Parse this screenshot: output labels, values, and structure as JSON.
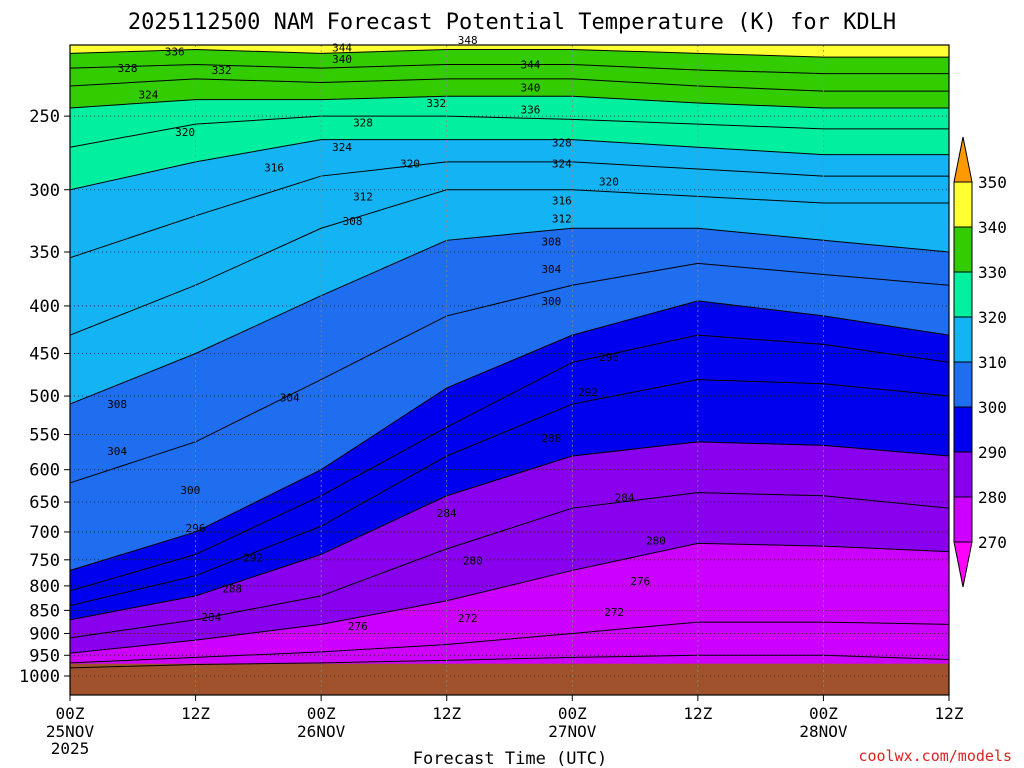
{
  "chart_data": {
    "type": "heatmap",
    "title": "2025112500 NAM Forecast Potential Temperature (K) for KDLH",
    "xlabel": "Forecast Time (UTC)",
    "ylabel": "",
    "credit": "coolwx.com/models",
    "x_ticks": [
      "00Z",
      "12Z",
      "00Z",
      "12Z",
      "00Z",
      "12Z",
      "00Z",
      "12Z"
    ],
    "x_dates": [
      {
        "tick": 0,
        "lines": [
          "25NOV",
          "2025"
        ]
      },
      {
        "tick": 2,
        "lines": [
          "26NOV"
        ]
      },
      {
        "tick": 4,
        "lines": [
          "27NOV"
        ]
      },
      {
        "tick": 6,
        "lines": [
          "28NOV"
        ]
      }
    ],
    "x_range_hours": [
      0,
      84
    ],
    "y_pressure_ticks": [
      250,
      300,
      350,
      400,
      450,
      500,
      550,
      600,
      650,
      700,
      750,
      800,
      850,
      900,
      950,
      1000
    ],
    "y_pressure_range_hPa": [
      200,
      1000
    ],
    "y_scale": "log",
    "ground_pressure_hPa": 970,
    "colorbar": {
      "levels": [
        270,
        280,
        290,
        300,
        310,
        320,
        330,
        340,
        350
      ],
      "colors": [
        "#ff00ff",
        "#cc00ff",
        "#8800ee",
        "#0000ee",
        "#1f6ef0",
        "#14b4f4",
        "#00f0a0",
        "#33cc00",
        "#ffff33",
        "#ff9900"
      ],
      "extend": "both",
      "units": "K"
    },
    "ground_color": "#a0522d",
    "grid": "dotted",
    "isentropes": [
      {
        "theta": 272,
        "p": [
          980,
          972,
          968,
          962,
          955,
          950,
          950,
          960
        ]
      },
      {
        "theta": 276,
        "p": [
          968,
          955,
          942,
          925,
          900,
          875,
          875,
          880
        ]
      },
      {
        "theta": 280,
        "p": [
          945,
          915,
          880,
          830,
          770,
          720,
          725,
          735
        ]
      },
      {
        "theta": 284,
        "p": [
          910,
          870,
          820,
          730,
          660,
          635,
          640,
          660
        ]
      },
      {
        "theta": 288,
        "p": [
          870,
          820,
          740,
          640,
          580,
          560,
          565,
          580
        ]
      },
      {
        "theta": 292,
        "p": [
          840,
          780,
          690,
          580,
          510,
          480,
          485,
          500
        ]
      },
      {
        "theta": 296,
        "p": [
          810,
          740,
          640,
          540,
          460,
          430,
          440,
          460
        ]
      },
      {
        "theta": 300,
        "p": [
          770,
          700,
          600,
          490,
          430,
          395,
          410,
          430
        ]
      },
      {
        "theta": 304,
        "p": [
          620,
          560,
          480,
          410,
          380,
          360,
          370,
          380
        ]
      },
      {
        "theta": 308,
        "p": [
          510,
          450,
          390,
          340,
          330,
          330,
          340,
          350
        ]
      },
      {
        "theta": 312,
        "p": [
          430,
          380,
          330,
          300,
          300,
          305,
          310,
          310
        ]
      },
      {
        "theta": 316,
        "p": [
          355,
          320,
          290,
          280,
          280,
          285,
          290,
          290
        ]
      },
      {
        "theta": 320,
        "p": [
          300,
          280,
          265,
          265,
          265,
          270,
          275,
          275
        ]
      },
      {
        "theta": 324,
        "p": [
          270,
          255,
          250,
          250,
          252,
          255,
          258,
          258
        ]
      },
      {
        "theta": 328,
        "p": [
          245,
          240,
          240,
          238,
          238,
          242,
          245,
          245
        ]
      },
      {
        "theta": 332,
        "p": [
          232,
          228,
          230,
          228,
          228,
          232,
          235,
          235
        ]
      },
      {
        "theta": 336,
        "p": [
          222,
          220,
          222,
          220,
          220,
          223,
          225,
          225
        ]
      },
      {
        "theta": 340,
        "p": [
          214,
          212,
          214,
          212,
          212,
          214,
          216,
          216
        ]
      },
      {
        "theta": 344,
        "p": [
          207,
          206,
          207,
          206,
          206,
          207,
          208,
          208
        ]
      },
      {
        "theta": 348,
        "p": [
          201,
          201,
          201,
          201,
          201,
          202,
          202,
          202
        ]
      }
    ],
    "contour_labels": [
      {
        "text": "336",
        "hour": 10,
        "p": 213
      },
      {
        "text": "328",
        "hour": 5.5,
        "p": 222
      },
      {
        "text": "332",
        "hour": 14.5,
        "p": 223
      },
      {
        "text": "344",
        "hour": 26,
        "p": 211
      },
      {
        "text": "340",
        "hour": 26,
        "p": 217
      },
      {
        "text": "348",
        "hour": 38,
        "p": 207
      },
      {
        "text": "344",
        "hour": 44,
        "p": 220
      },
      {
        "text": "340",
        "hour": 44,
        "p": 233
      },
      {
        "text": "336",
        "hour": 44,
        "p": 246
      },
      {
        "text": "332",
        "hour": 35,
        "p": 242
      },
      {
        "text": "324",
        "hour": 7.5,
        "p": 237
      },
      {
        "text": "320",
        "hour": 11,
        "p": 260
      },
      {
        "text": "328",
        "hour": 28,
        "p": 254
      },
      {
        "text": "324",
        "hour": 26,
        "p": 270
      },
      {
        "text": "320",
        "hour": 32.5,
        "p": 281
      },
      {
        "text": "316",
        "hour": 19.5,
        "p": 284
      },
      {
        "text": "328",
        "hour": 47,
        "p": 267
      },
      {
        "text": "324",
        "hour": 47,
        "p": 281
      },
      {
        "text": "320",
        "hour": 51.5,
        "p": 294
      },
      {
        "text": "312",
        "hour": 28,
        "p": 305
      },
      {
        "text": "316",
        "hour": 47,
        "p": 308
      },
      {
        "text": "312",
        "hour": 47,
        "p": 322
      },
      {
        "text": "308",
        "hour": 27,
        "p": 324
      },
      {
        "text": "308",
        "hour": 46,
        "p": 341
      },
      {
        "text": "304",
        "hour": 46,
        "p": 365
      },
      {
        "text": "300",
        "hour": 46,
        "p": 395
      },
      {
        "text": "296",
        "hour": 51.5,
        "p": 454
      },
      {
        "text": "304",
        "hour": 21,
        "p": 502
      },
      {
        "text": "308",
        "hour": 4.5,
        "p": 510
      },
      {
        "text": "292",
        "hour": 49.5,
        "p": 495
      },
      {
        "text": "304",
        "hour": 4.5,
        "p": 573
      },
      {
        "text": "288",
        "hour": 46,
        "p": 555
      },
      {
        "text": "300",
        "hour": 11.5,
        "p": 631
      },
      {
        "text": "284",
        "hour": 53,
        "p": 643
      },
      {
        "text": "284",
        "hour": 36,
        "p": 668
      },
      {
        "text": "296",
        "hour": 12,
        "p": 693
      },
      {
        "text": "280",
        "hour": 56,
        "p": 715
      },
      {
        "text": "292",
        "hour": 17.5,
        "p": 746
      },
      {
        "text": "280",
        "hour": 38.5,
        "p": 751
      },
      {
        "text": "276",
        "hour": 54.5,
        "p": 790
      },
      {
        "text": "288",
        "hour": 15.5,
        "p": 805
      },
      {
        "text": "272",
        "hour": 52,
        "p": 853
      },
      {
        "text": "284",
        "hour": 13.5,
        "p": 864
      },
      {
        "text": "272",
        "hour": 38,
        "p": 866
      },
      {
        "text": "276",
        "hour": 27.5,
        "p": 884
      }
    ]
  }
}
